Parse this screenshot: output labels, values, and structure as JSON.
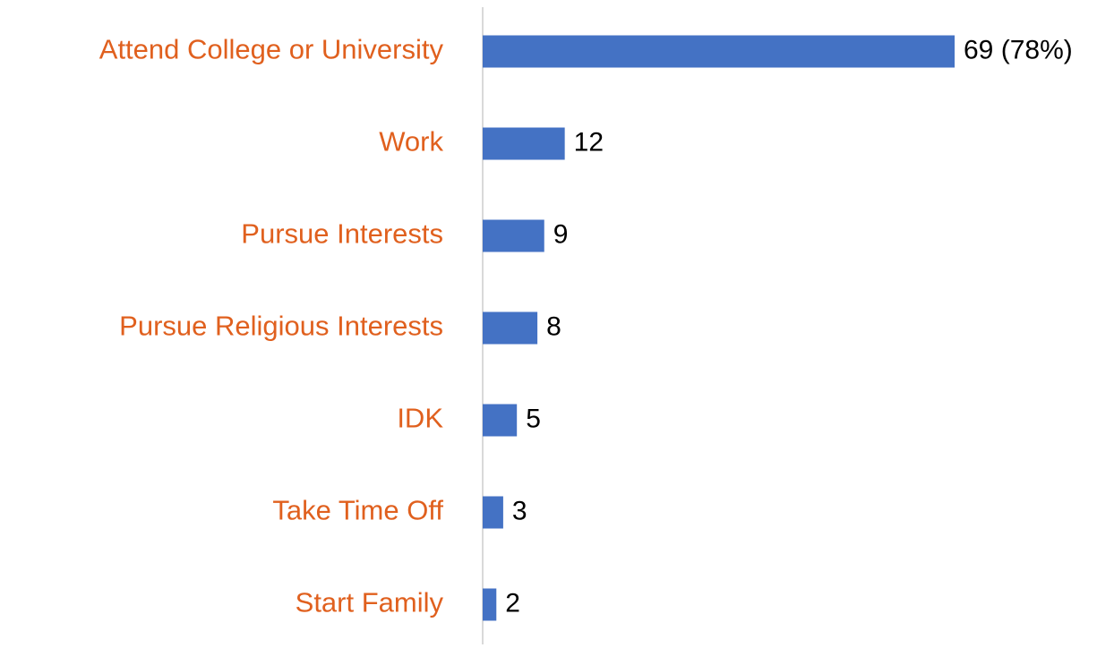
{
  "chart_data": {
    "type": "bar",
    "orientation": "horizontal",
    "categories": [
      "Attend College or University",
      "Work",
      "Pursue Interests",
      "Pursue Religious Interests",
      "IDK",
      "Take Time Off",
      "Start Family"
    ],
    "values": [
      69,
      12,
      9,
      8,
      5,
      3,
      2
    ],
    "value_labels": [
      "69 (78%)",
      "12",
      "9",
      "8",
      "5",
      "3",
      "2"
    ],
    "color": "#4472c4",
    "label_color": "#e0601e"
  }
}
